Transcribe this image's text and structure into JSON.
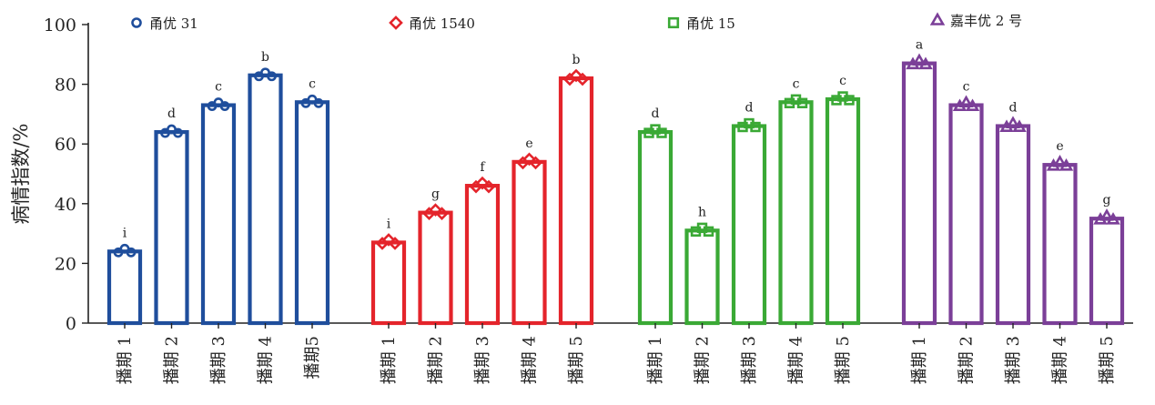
{
  "chart_data": {
    "type": "bar",
    "ylabel": "病情指数/%",
    "ylim": [
      0,
      100
    ],
    "yticks": [
      0,
      20,
      40,
      60,
      80,
      100
    ],
    "grid": false,
    "legend_position": "top",
    "series": [
      {
        "name": "甬优 31",
        "color": "#1f4e9c",
        "marker": "circle",
        "categories": [
          "播期 1",
          "播期 2",
          "播期 3",
          "播期 4",
          "播期5"
        ],
        "values": [
          24,
          64,
          73,
          83,
          74
        ],
        "significance": [
          "i",
          "d",
          "c",
          "b",
          "c"
        ]
      },
      {
        "name": "甬优 1540",
        "color": "#e4242b",
        "marker": "diamond",
        "categories": [
          "播期 1",
          "播期 2",
          "播期 3",
          "播期 4",
          "播期 5"
        ],
        "values": [
          27,
          37,
          46,
          54,
          82
        ],
        "significance": [
          "i",
          "g",
          "f",
          "e",
          "b"
        ]
      },
      {
        "name": "甬优 15",
        "color": "#3aa935",
        "marker": "square",
        "categories": [
          "播期 1",
          "播期 2",
          "播期 3",
          "播期 4",
          "播期 5"
        ],
        "values": [
          64,
          31,
          66,
          74,
          75
        ],
        "significance": [
          "d",
          "h",
          "d",
          "c",
          "c"
        ]
      },
      {
        "name": "嘉丰优 2 号",
        "color": "#7b3f98",
        "marker": "triangle",
        "categories": [
          "播期 1",
          "播期 2",
          "播期 3",
          "播期 4",
          "播期 5"
        ],
        "values": [
          87,
          73,
          66,
          53,
          35
        ],
        "significance": [
          "a",
          "c",
          "d",
          "e",
          "g"
        ]
      }
    ]
  }
}
